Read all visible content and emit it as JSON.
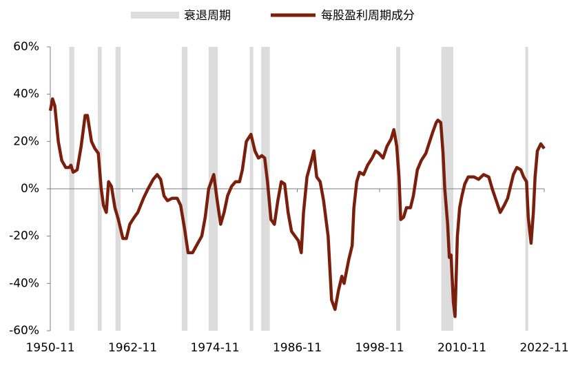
{
  "chart_data": {
    "type": "line",
    "x": [
      "1950-11",
      "1951-03",
      "1951-07",
      "1952-01",
      "1952-07",
      "1953-02",
      "1953-08",
      "1953-11",
      "1954-03",
      "1954-10",
      "1955-05",
      "1955-12",
      "1956-04",
      "1956-11",
      "1957-05",
      "1957-11",
      "1958-04",
      "1958-08",
      "1959-01",
      "1959-05",
      "1959-10",
      "1960-04",
      "1960-10",
      "1961-06",
      "1961-12",
      "1962-06",
      "1963-02",
      "1963-08",
      "1964-06",
      "1965-02",
      "1965-11",
      "1966-06",
      "1966-12",
      "1967-06",
      "1967-12",
      "1968-08",
      "1969-05",
      "1969-11",
      "1970-06",
      "1970-12",
      "1971-08",
      "1972-05",
      "1972-12",
      "1973-06",
      "1973-12",
      "1974-09",
      "1975-03",
      "1975-09",
      "1976-03",
      "1976-09",
      "1977-04",
      "1977-11",
      "1978-06",
      "1978-11",
      "1979-06",
      "1980-02",
      "1980-09",
      "1981-03",
      "1981-09",
      "1982-02",
      "1982-07",
      "1983-01",
      "1983-07",
      "1984-01",
      "1984-07",
      "1985-01",
      "1985-07",
      "1986-01",
      "1986-07",
      "1987-01",
      "1987-06",
      "1987-10",
      "1988-04",
      "1988-12",
      "1989-04",
      "1989-09",
      "1990-03",
      "1990-09",
      "1991-05",
      "1991-11",
      "1992-05",
      "1992-11",
      "1993-05",
      "1993-09",
      "1994-05",
      "1994-11",
      "1995-02",
      "1995-07",
      "1995-12",
      "1996-07",
      "1997-02",
      "1997-10",
      "1998-04",
      "1998-10",
      "1999-05",
      "1999-12",
      "2000-07",
      "2000-12",
      "2001-05",
      "2001-09",
      "2001-12",
      "2002-05",
      "2002-10",
      "2003-05",
      "2003-10",
      "2004-05",
      "2004-12",
      "2005-08",
      "2005-12",
      "2006-08",
      "2007-02",
      "2007-05",
      "2007-10",
      "2008-02",
      "2008-05",
      "2008-10",
      "2009-01",
      "2009-04",
      "2009-08",
      "2009-11",
      "2010-03",
      "2010-07",
      "2010-11",
      "2011-04",
      "2011-10",
      "2012-08",
      "2013-04",
      "2014-01",
      "2014-10",
      "2015-04",
      "2015-11",
      "2016-06",
      "2017-01",
      "2017-07",
      "2017-11",
      "2018-05",
      "2018-11",
      "2019-06",
      "2019-11",
      "2020-04",
      "2020-07",
      "2020-12",
      "2021-04",
      "2021-07",
      "2021-11",
      "2022-05",
      "2022-11"
    ],
    "series": [
      {
        "name": "每股盈利周期成分",
        "color": "#7a1f0c",
        "values": [
          33,
          38,
          35,
          20,
          12,
          9,
          9,
          10,
          7,
          8,
          18,
          31,
          31,
          20,
          17,
          15,
          0,
          -7,
          -10,
          3,
          1,
          -8,
          -13,
          -21,
          -21,
          -15,
          -12,
          -10,
          -4,
          0,
          4,
          6,
          4,
          -3,
          -5,
          -4,
          -4,
          -7,
          -17,
          -27,
          -27,
          -23,
          -20,
          -12,
          0,
          6,
          -5,
          -15,
          -10,
          -3,
          1,
          3,
          3,
          8,
          20,
          23,
          16,
          13,
          14,
          13,
          3,
          -13,
          -15,
          -5,
          3,
          2,
          -10,
          -18,
          -20,
          -22,
          -27,
          -10,
          5,
          12,
          16,
          5,
          3,
          -5,
          -20,
          -47,
          -51,
          -43,
          -37,
          -40,
          -30,
          -24,
          -8,
          3,
          7,
          6,
          10,
          13,
          16,
          15,
          13,
          18,
          21,
          25,
          18,
          5,
          -13,
          -12,
          -8,
          -8,
          -3,
          8,
          12,
          15,
          18,
          24,
          28,
          29,
          28,
          15,
          0,
          -15,
          -29,
          -28,
          -48,
          -54,
          -20,
          -8,
          -3,
          2,
          5,
          5,
          4,
          6,
          5,
          0,
          -5,
          -10,
          -7,
          -4,
          0,
          6,
          9,
          8,
          5,
          3,
          -12,
          -23,
          -10,
          5,
          16,
          19,
          17
        ]
      }
    ],
    "recessions": {
      "name": "衰退周期",
      "color": "#dcdcdc",
      "periods": [
        [
          "1953-08",
          "1954-05"
        ],
        [
          "1957-10",
          "1958-05"
        ],
        [
          "1960-05",
          "1961-02"
        ],
        [
          "1970-01",
          "1970-11"
        ],
        [
          "1973-12",
          "1975-04"
        ],
        [
          "1979-12",
          "1980-06"
        ],
        [
          "1981-08",
          "1982-11"
        ],
        [
          "2001-04",
          "2001-11"
        ],
        [
          "2007-11",
          "2009-08"
        ],
        [
          "2020-02",
          "2020-07"
        ]
      ]
    },
    "xlim": [
      "1950-11",
      "2022-11"
    ],
    "xticks": [
      "1950-11",
      "1962-11",
      "1974-11",
      "1986-11",
      "1998-11",
      "2010-11",
      "2022-11"
    ],
    "ylim": [
      -60,
      60
    ],
    "yticks": [
      {
        "value": -60,
        "label": "-60%"
      },
      {
        "value": -40,
        "label": "-40%"
      },
      {
        "value": -20,
        "label": "-20%"
      },
      {
        "value": 0,
        "label": "0%"
      },
      {
        "value": 20,
        "label": "20%"
      },
      {
        "value": 40,
        "label": "40%"
      },
      {
        "value": 60,
        "label": "60%"
      }
    ]
  }
}
